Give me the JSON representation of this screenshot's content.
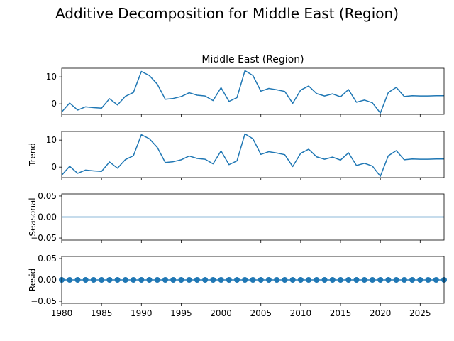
{
  "suptitle": "Additive Decomposition for Middle East (Region)",
  "colors": {
    "series": "#1f77b4",
    "axis": "#000000",
    "background": "#ffffff"
  },
  "chart_data": [
    {
      "type": "line",
      "panel": "observed",
      "title": "Middle East (Region)",
      "ylabel": "",
      "x": [
        1980,
        1981,
        1982,
        1983,
        1984,
        1985,
        1986,
        1987,
        1988,
        1989,
        1990,
        1991,
        1992,
        1993,
        1994,
        1995,
        1996,
        1997,
        1998,
        1999,
        2000,
        2001,
        2002,
        2003,
        2004,
        2005,
        2006,
        2007,
        2008,
        2009,
        2010,
        2011,
        2012,
        2013,
        2014,
        2015,
        2016,
        2017,
        2018,
        2019,
        2020,
        2021,
        2022,
        2023,
        2024,
        2025,
        2026,
        2027,
        2028
      ],
      "values": [
        -3.0,
        0.3,
        -2.3,
        -1.1,
        -1.4,
        -1.6,
        1.9,
        -0.4,
        2.8,
        4.2,
        12.0,
        10.5,
        7.3,
        1.7,
        2.0,
        2.7,
        4.1,
        3.2,
        2.9,
        1.2,
        6.0,
        0.9,
        2.3,
        12.3,
        10.5,
        4.7,
        5.7,
        5.2,
        4.6,
        0.2,
        5.1,
        6.6,
        3.8,
        2.9,
        3.7,
        2.6,
        5.3,
        0.6,
        1.4,
        0.4,
        -3.4,
        4.2,
        6.1,
        2.7,
        3.0,
        2.9,
        2.9,
        3.0,
        3.0
      ],
      "yticks": [
        0,
        10
      ],
      "ylim": [
        -3.9,
        13.2
      ],
      "xlim": [
        1980,
        2028
      ],
      "grid": false
    },
    {
      "type": "line",
      "panel": "trend",
      "title": "",
      "ylabel": "Trend",
      "x": [
        1980,
        1981,
        1982,
        1983,
        1984,
        1985,
        1986,
        1987,
        1988,
        1989,
        1990,
        1991,
        1992,
        1993,
        1994,
        1995,
        1996,
        1997,
        1998,
        1999,
        2000,
        2001,
        2002,
        2003,
        2004,
        2005,
        2006,
        2007,
        2008,
        2009,
        2010,
        2011,
        2012,
        2013,
        2014,
        2015,
        2016,
        2017,
        2018,
        2019,
        2020,
        2021,
        2022,
        2023,
        2024,
        2025,
        2026,
        2027,
        2028
      ],
      "values": [
        -3.0,
        0.3,
        -2.3,
        -1.1,
        -1.4,
        -1.6,
        1.9,
        -0.4,
        2.8,
        4.2,
        12.0,
        10.5,
        7.3,
        1.7,
        2.0,
        2.7,
        4.1,
        3.2,
        2.9,
        1.2,
        6.0,
        0.9,
        2.3,
        12.3,
        10.5,
        4.7,
        5.7,
        5.2,
        4.6,
        0.2,
        5.1,
        6.6,
        3.8,
        2.9,
        3.7,
        2.6,
        5.3,
        0.6,
        1.4,
        0.4,
        -3.4,
        4.2,
        6.1,
        2.7,
        3.0,
        2.9,
        2.9,
        3.0,
        3.0
      ],
      "yticks": [
        0,
        10
      ],
      "ylim": [
        -3.9,
        13.2
      ],
      "xlim": [
        1980,
        2028
      ],
      "grid": false
    },
    {
      "type": "line",
      "panel": "seasonal",
      "title": "",
      "ylabel": "Seasonal",
      "x": [
        1980,
        2028
      ],
      "values": [
        0.0,
        0.0
      ],
      "yticks": [
        -0.05,
        0.0,
        0.05
      ],
      "ytick_labels": [
        "−0.05",
        "0.00",
        "0.05"
      ],
      "ylim": [
        -0.055,
        0.055
      ],
      "xlim": [
        1980,
        2028
      ],
      "grid": false
    },
    {
      "type": "scatter",
      "panel": "resid",
      "title": "",
      "ylabel": "Resid",
      "x": [
        1980,
        1981,
        1982,
        1983,
        1984,
        1985,
        1986,
        1987,
        1988,
        1989,
        1990,
        1991,
        1992,
        1993,
        1994,
        1995,
        1996,
        1997,
        1998,
        1999,
        2000,
        2001,
        2002,
        2003,
        2004,
        2005,
        2006,
        2007,
        2008,
        2009,
        2010,
        2011,
        2012,
        2013,
        2014,
        2015,
        2016,
        2017,
        2018,
        2019,
        2020,
        2021,
        2022,
        2023,
        2024,
        2025,
        2026,
        2027,
        2028
      ],
      "values": [
        0,
        0,
        0,
        0,
        0,
        0,
        0,
        0,
        0,
        0,
        0,
        0,
        0,
        0,
        0,
        0,
        0,
        0,
        0,
        0,
        0,
        0,
        0,
        0,
        0,
        0,
        0,
        0,
        0,
        0,
        0,
        0,
        0,
        0,
        0,
        0,
        0,
        0,
        0,
        0,
        0,
        0,
        0,
        0,
        0,
        0,
        0,
        0,
        0
      ],
      "yticks": [
        -0.05,
        0.0,
        0.05
      ],
      "ytick_labels": [
        "−0.05",
        "0.00",
        "0.05"
      ],
      "ylim": [
        -0.055,
        0.055
      ],
      "xlim": [
        1980,
        2028
      ],
      "xticks": [
        1980,
        1985,
        1990,
        1995,
        2000,
        2005,
        2010,
        2015,
        2020,
        2025
      ],
      "grid": false,
      "baseline": true
    }
  ]
}
